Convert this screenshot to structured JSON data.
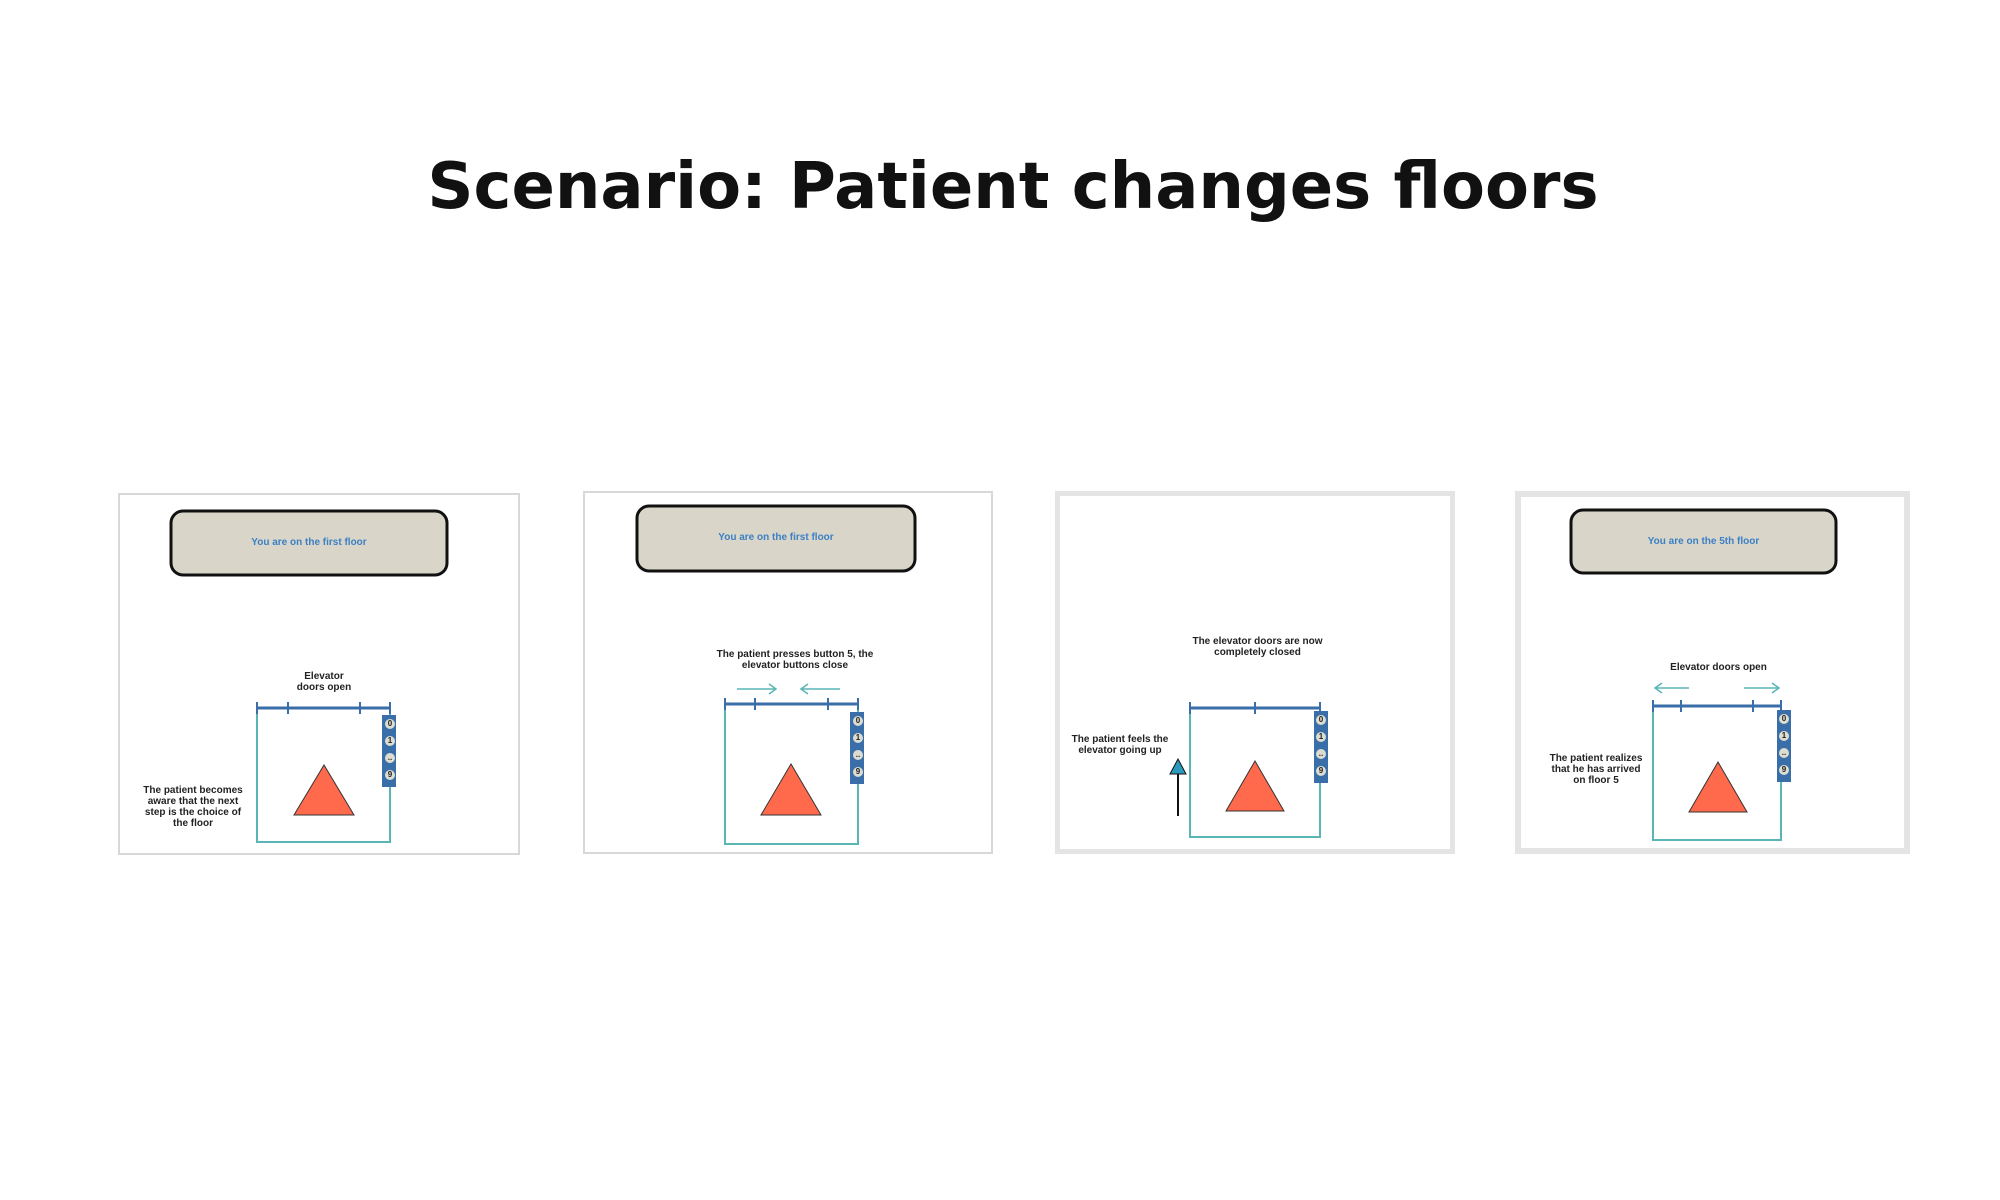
{
  "title": "Scenario: Patient changes floors",
  "colors": {
    "status_box_fill": "#d9d6c9",
    "status_text": "#3b7fc4",
    "elevator_outline": "#5ab5b5",
    "door_rail": "#3a6ea8",
    "patient_triangle": "#ff6a4d",
    "up_arrow_head": "#2a9bbd"
  },
  "panels": [
    {
      "status": "You are on the first floor",
      "doors_caption": "Elevator doors open",
      "patient_caption": "The patient becomes aware that the next step is the choice of the floor",
      "buttons": [
        "0",
        "1",
        "..",
        "9"
      ]
    },
    {
      "status": "You are on the first floor",
      "doors_caption": "The patient presses button 5, the elevator buttons close",
      "buttons": [
        "0",
        "1",
        "..",
        "9"
      ]
    },
    {
      "doors_caption": "The elevator doors are now completely closed",
      "patient_caption": "The patient feels the elevator going up",
      "buttons": [
        "0",
        "1",
        "..",
        "9"
      ]
    },
    {
      "status": "You are on the 5th floor",
      "doors_caption": "Elevator doors open",
      "patient_caption": "The patient realizes that he has arrived on floor 5",
      "buttons": [
        "0",
        "1",
        "..",
        "9"
      ]
    }
  ]
}
